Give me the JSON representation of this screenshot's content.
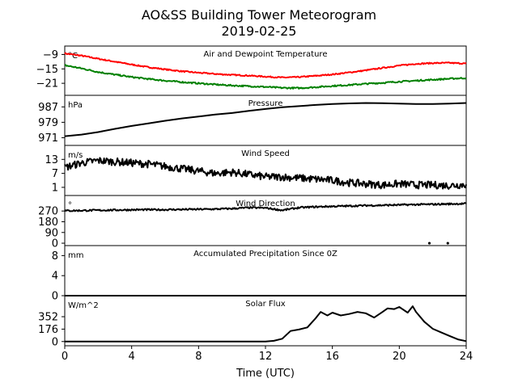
{
  "title": "AO&SS Building Tower Meteorogram",
  "subtitle": "2019-02-25",
  "xlabel": "Time (UTC)",
  "colors": {
    "air_temp": "#ff0000",
    "dewpoint": "#008000",
    "line": "#000000",
    "background": "#ffffff"
  },
  "chart_data": [
    {
      "type": "line",
      "title": "Air and Dewpoint Temperature",
      "unit_label": "°C",
      "xlim": [
        0,
        24
      ],
      "ylim": [
        -26,
        -5.5
      ],
      "yticks": [
        -9,
        -15,
        -21
      ],
      "ytick_labels": [
        "−9",
        "−15",
        "−21"
      ],
      "series": [
        {
          "style": "air_temp",
          "x": [
            0,
            1,
            2,
            3,
            4,
            5,
            6,
            7,
            8,
            9,
            10,
            11,
            12,
            13,
            14,
            15,
            16,
            17,
            18,
            19,
            20,
            21,
            22,
            23,
            24
          ],
          "values": [
            -8.6,
            -9.5,
            -10.8,
            -12.0,
            -13.2,
            -14.3,
            -15.2,
            -16.0,
            -16.6,
            -17.1,
            -17.5,
            -17.8,
            -18.2,
            -18.6,
            -18.4,
            -17.9,
            -17.3,
            -16.5,
            -15.6,
            -14.6,
            -13.6,
            -12.9,
            -12.6,
            -12.5,
            -12.8
          ]
        },
        {
          "style": "dewpoint",
          "x": [
            0,
            1,
            2,
            3,
            4,
            5,
            6,
            7,
            8,
            9,
            10,
            11,
            12,
            13,
            14,
            15,
            16,
            17,
            18,
            19,
            20,
            21,
            22,
            23,
            24
          ],
          "values": [
            -13.5,
            -14.8,
            -16.3,
            -17.4,
            -18.4,
            -19.2,
            -19.9,
            -20.5,
            -21.0,
            -21.5,
            -21.9,
            -22.2,
            -22.5,
            -22.9,
            -23.0,
            -22.6,
            -22.1,
            -21.7,
            -21.2,
            -20.8,
            -20.3,
            -19.9,
            -19.5,
            -19.1,
            -18.8
          ]
        }
      ]
    },
    {
      "type": "line",
      "title": "Pressure",
      "unit_label": "hPa",
      "xlim": [
        0,
        24
      ],
      "ylim": [
        967,
        993
      ],
      "yticks": [
        987,
        979,
        971
      ],
      "ytick_labels": [
        "987",
        "979",
        "971"
      ],
      "series": [
        {
          "style": "line",
          "x": [
            0,
            1,
            2,
            3,
            4,
            5,
            6,
            7,
            8,
            9,
            10,
            11,
            12,
            13,
            14,
            15,
            16,
            17,
            18,
            19,
            20,
            21,
            22,
            23,
            24
          ],
          "values": [
            971.8,
            972.6,
            973.9,
            975.6,
            977.1,
            978.4,
            979.8,
            981.0,
            982.0,
            983.0,
            983.8,
            984.9,
            985.9,
            986.8,
            987.4,
            988.0,
            988.5,
            988.8,
            989.0,
            988.9,
            988.7,
            988.5,
            988.5,
            988.7,
            989.0
          ]
        }
      ]
    },
    {
      "type": "line",
      "title": "Wind Speed",
      "unit_label": "m/s",
      "xlim": [
        0,
        24
      ],
      "ylim": [
        -2.5,
        19
      ],
      "yticks": [
        13,
        7,
        1
      ],
      "ytick_labels": [
        "13",
        "7",
        "1"
      ],
      "series": [
        {
          "style": "line",
          "x": [
            0,
            1,
            2,
            3,
            4,
            5,
            6,
            7,
            8,
            9,
            10,
            11,
            12,
            13,
            14,
            15,
            16,
            17,
            18,
            19,
            20,
            21,
            22,
            23,
            24
          ],
          "values": [
            9.5,
            11.5,
            12.5,
            12.0,
            11.5,
            11.0,
            10.0,
            9.0,
            8.0,
            7.0,
            7.5,
            6.5,
            5.5,
            5.5,
            5.0,
            4.5,
            4.0,
            3.0,
            2.5,
            2.0,
            2.5,
            2.0,
            2.0,
            1.8,
            2.2
          ]
        }
      ]
    },
    {
      "type": "line",
      "title": "Wind Direction",
      "unit_label": "°",
      "xlim": [
        0,
        24
      ],
      "ylim": [
        -20,
        400
      ],
      "yticks": [
        270,
        180,
        90,
        0
      ],
      "ytick_labels": [
        "270",
        "180",
        "90",
        "0"
      ],
      "series": [
        {
          "style": "line",
          "x": [
            0,
            1,
            2,
            3,
            4,
            5,
            6,
            7,
            8,
            9,
            10,
            11,
            12,
            13,
            14,
            15,
            16,
            17,
            18,
            19,
            20,
            21,
            22,
            23,
            24
          ],
          "values": [
            272,
            274,
            276,
            278,
            280,
            281,
            281,
            283,
            284,
            286,
            290,
            298,
            296,
            276,
            298,
            305,
            309,
            312,
            316,
            318,
            321,
            324,
            326,
            329,
            332
          ]
        }
      ],
      "outlier_points": {
        "x": [
          21.8,
          22.9
        ],
        "values": [
          0,
          0
        ]
      }
    },
    {
      "type": "line",
      "title": "Accumulated Precipitation Since 0Z",
      "unit_label": "mm",
      "xlim": [
        0,
        24
      ],
      "ylim": [
        0,
        10
      ],
      "yticks": [
        8,
        4,
        0
      ],
      "ytick_labels": [
        "8",
        "4",
        "0"
      ],
      "series": [
        {
          "style": "line",
          "x": [
            0,
            24
          ],
          "values": [
            0,
            0
          ]
        }
      ]
    },
    {
      "type": "line",
      "title": "Solar Flux",
      "unit_label": "W/m^2",
      "xlim": [
        0,
        24
      ],
      "ylim": [
        -60,
        650
      ],
      "yticks": [
        352,
        176,
        0
      ],
      "ytick_labels": [
        "352",
        "176",
        "0"
      ],
      "series": [
        {
          "style": "line",
          "x": [
            0,
            12.0,
            12.5,
            13.0,
            13.5,
            14.0,
            14.5,
            15.0,
            15.3,
            15.7,
            16.0,
            16.5,
            17.0,
            17.5,
            18.0,
            18.5,
            19.0,
            19.3,
            19.7,
            20.0,
            20.5,
            20.8,
            21.0,
            21.5,
            22.0,
            22.5,
            23.0,
            23.5,
            24.0
          ],
          "values": [
            0,
            0,
            10,
            40,
            150,
            170,
            200,
            330,
            420,
            370,
            410,
            370,
            390,
            420,
            400,
            340,
            420,
            470,
            460,
            490,
            410,
            500,
            420,
            280,
            180,
            130,
            80,
            30,
            5
          ]
        }
      ]
    }
  ],
  "x_axis": {
    "ticks": [
      0,
      4,
      8,
      12,
      16,
      20,
      24
    ],
    "tick_labels": [
      "0",
      "4",
      "8",
      "12",
      "16",
      "20",
      "24"
    ]
  }
}
